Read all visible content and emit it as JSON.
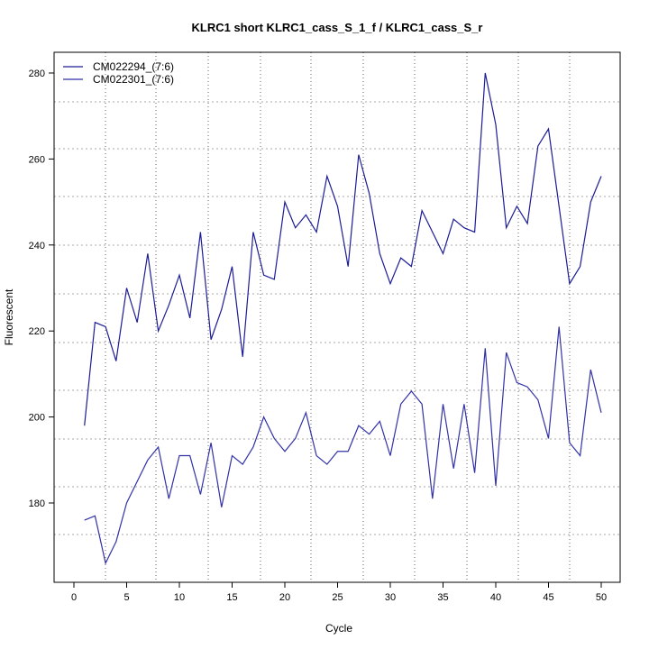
{
  "chart_data": {
    "type": "line",
    "title": "KLRC1 short KLRC1_cass_S_1_f / KLRC1_cass_S_r",
    "xlabel": "Cycle",
    "ylabel": "Fluorescent",
    "xlim": [
      -1.9,
      51.8
    ],
    "ylim": [
      162.5,
      285
    ],
    "xticks": [
      0,
      5,
      10,
      15,
      20,
      25,
      30,
      35,
      40,
      45,
      50
    ],
    "yticks": [
      180,
      200,
      220,
      240,
      260,
      280
    ],
    "grid": true,
    "legend_position": "top-left",
    "x": [
      1,
      2,
      3,
      4,
      5,
      6,
      7,
      8,
      9,
      10,
      11,
      12,
      13,
      14,
      15,
      16,
      17,
      18,
      19,
      20,
      21,
      22,
      23,
      24,
      25,
      26,
      27,
      28,
      29,
      30,
      31,
      32,
      33,
      34,
      35,
      36,
      37,
      38,
      39,
      40,
      41,
      42,
      43,
      44,
      45,
      46,
      47,
      48,
      49,
      50
    ],
    "series": [
      {
        "name": "CM022294_(7:6)",
        "color": "#1c1c96",
        "values": [
          198,
          222,
          221,
          213,
          230,
          222,
          238,
          220,
          226,
          233,
          223,
          243,
          218,
          225,
          235,
          214,
          243,
          233,
          232,
          250,
          244,
          247,
          243,
          256,
          249,
          235,
          261,
          252,
          238,
          231,
          237,
          235,
          248,
          243,
          238,
          246,
          244,
          243,
          280,
          268,
          244,
          249,
          245,
          263,
          267,
          249,
          231,
          235,
          250,
          256
        ]
      },
      {
        "name": "CM022301_(7:6)",
        "color": "#3232a8",
        "values": [
          176,
          177,
          166,
          171,
          180,
          185,
          190,
          193,
          181,
          191,
          191,
          182,
          194,
          179,
          191,
          189,
          193,
          200,
          195,
          192,
          195,
          201,
          191,
          189,
          192,
          192,
          198,
          196,
          199,
          191,
          203,
          206,
          203,
          181,
          203,
          188,
          203,
          187,
          216,
          184,
          215,
          208,
          207,
          204,
          195,
          221,
          194,
          191,
          211,
          201
        ]
      }
    ]
  }
}
